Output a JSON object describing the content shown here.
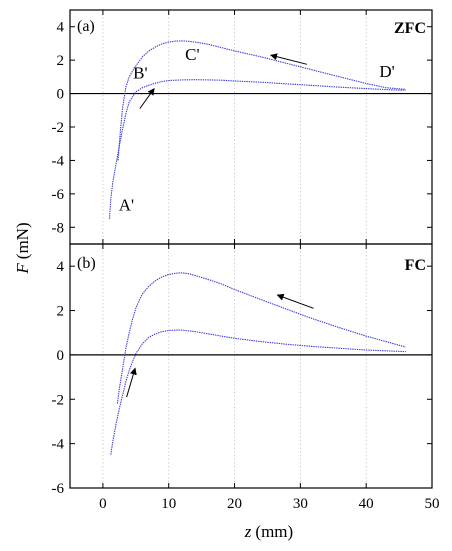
{
  "figure": {
    "ylabel_var": "F",
    "ylabel_unit": "(mN)",
    "xlabel_var": "z",
    "xlabel_unit": "(mm)"
  },
  "chart_data": [
    {
      "type": "line",
      "panel_label": "(a)",
      "condition_label": "ZFC",
      "xlim": [
        -5,
        50
      ],
      "ylim": [
        -9,
        5
      ],
      "x_ticks": [
        0,
        10,
        20,
        30,
        40,
        50
      ],
      "y_ticks": [
        -8,
        -6,
        -4,
        -2,
        0,
        2,
        4
      ],
      "y_tick_labels": [
        "-8",
        "-6",
        "-4",
        "-2",
        "0",
        "2",
        "4"
      ],
      "grid": "dotted vertical",
      "line_color": "#3b3bdc",
      "series": [
        {
          "x": [
            1.0,
            1.2,
            1.5,
            2.0,
            2.5,
            3.0,
            3.5,
            4.0,
            5.0,
            6.0,
            7.0,
            8.0,
            9.0,
            10.0,
            12.0,
            14.0,
            16.0,
            18.0,
            20.0,
            24.0,
            28.0,
            32.0,
            36.0,
            40.0,
            44.0,
            46.0
          ],
          "y": [
            -7.5,
            -6.3,
            -5.3,
            -4.2,
            -3.1,
            -2.1,
            -1.2,
            -0.5,
            0.1,
            0.35,
            0.5,
            0.62,
            0.72,
            0.78,
            0.82,
            0.83,
            0.82,
            0.8,
            0.75,
            0.68,
            0.58,
            0.48,
            0.38,
            0.3,
            0.22,
            0.2
          ]
        },
        {
          "x": [
            2.3,
            2.6,
            3.0,
            3.5,
            4.0,
            4.5,
            5.0,
            6.0,
            7.0,
            8.0,
            9.0,
            10.0,
            11.0,
            12.0,
            13.0,
            14.0,
            16.0,
            18.0,
            20.0,
            24.0,
            28.0,
            32.0,
            36.0,
            40.0,
            43.0,
            46.0
          ],
          "y": [
            -4.0,
            -2.5,
            -0.8,
            0.4,
            1.0,
            1.35,
            1.65,
            2.2,
            2.55,
            2.8,
            2.98,
            3.08,
            3.14,
            3.15,
            3.13,
            3.08,
            2.95,
            2.75,
            2.55,
            2.2,
            1.8,
            1.4,
            1.0,
            0.6,
            0.35,
            0.25
          ]
        }
      ],
      "annotations": [
        {
          "text": "A'",
          "x": 2.4,
          "y": -7.0
        },
        {
          "text": "B'",
          "x": 4.6,
          "y": 0.9
        },
        {
          "text": "C'",
          "x": 12.5,
          "y": 2.0
        },
        {
          "text": "D'",
          "x": 42.0,
          "y": 1.0
        }
      ],
      "arrows": [
        {
          "from": [
            31.0,
            1.75
          ],
          "to": [
            25.5,
            2.3
          ]
        },
        {
          "from": [
            5.6,
            -0.9
          ],
          "to": [
            7.8,
            0.3
          ]
        }
      ]
    },
    {
      "type": "line",
      "panel_label": "(b)",
      "condition_label": "FC",
      "xlim": [
        -5,
        50
      ],
      "ylim": [
        -6,
        5
      ],
      "x_ticks": [
        0,
        10,
        20,
        30,
        40,
        50
      ],
      "x_tick_labels": [
        "0",
        "10",
        "20",
        "30",
        "40",
        "50"
      ],
      "y_ticks": [
        -6,
        -4,
        -2,
        0,
        2,
        4
      ],
      "y_tick_labels": [
        "-6",
        "-4",
        "-2",
        "0",
        "2",
        "4"
      ],
      "grid": "dotted vertical",
      "line_color": "#3b3bdc",
      "series": [
        {
          "x": [
            1.2,
            1.5,
            2.0,
            2.5,
            3.0,
            3.5,
            4.0,
            4.5,
            5.0,
            6.0,
            7.0,
            8.0,
            9.0,
            10.0,
            11.0,
            12.0,
            14.0,
            16.0,
            18.0,
            20.0,
            24.0,
            28.0,
            32.0,
            36.0,
            40.0,
            44.0,
            46.0
          ],
          "y": [
            -4.5,
            -3.9,
            -3.1,
            -2.4,
            -1.8,
            -1.2,
            -0.7,
            -0.3,
            0.05,
            0.5,
            0.8,
            0.95,
            1.05,
            1.1,
            1.12,
            1.12,
            1.05,
            0.95,
            0.85,
            0.75,
            0.6,
            0.48,
            0.38,
            0.3,
            0.22,
            0.17,
            0.15
          ]
        },
        {
          "x": [
            2.2,
            2.5,
            3.0,
            3.5,
            4.0,
            4.5,
            5.0,
            5.5,
            6.0,
            7.0,
            8.0,
            9.0,
            10.0,
            11.0,
            12.0,
            13.0,
            14.0,
            16.0,
            18.0,
            20.0,
            24.0,
            28.0,
            32.0,
            36.0,
            40.0,
            44.0,
            46.0
          ],
          "y": [
            -2.2,
            -1.5,
            -0.6,
            0.3,
            1.0,
            1.6,
            2.1,
            2.45,
            2.75,
            3.1,
            3.35,
            3.52,
            3.62,
            3.68,
            3.7,
            3.66,
            3.58,
            3.4,
            3.2,
            2.95,
            2.5,
            2.05,
            1.62,
            1.22,
            0.85,
            0.52,
            0.35
          ]
        }
      ],
      "annotations": [],
      "arrows": [
        {
          "from": [
            32.0,
            2.1
          ],
          "to": [
            26.5,
            2.7
          ]
        },
        {
          "from": [
            3.6,
            -1.9
          ],
          "to": [
            4.9,
            -0.6
          ]
        }
      ]
    }
  ]
}
